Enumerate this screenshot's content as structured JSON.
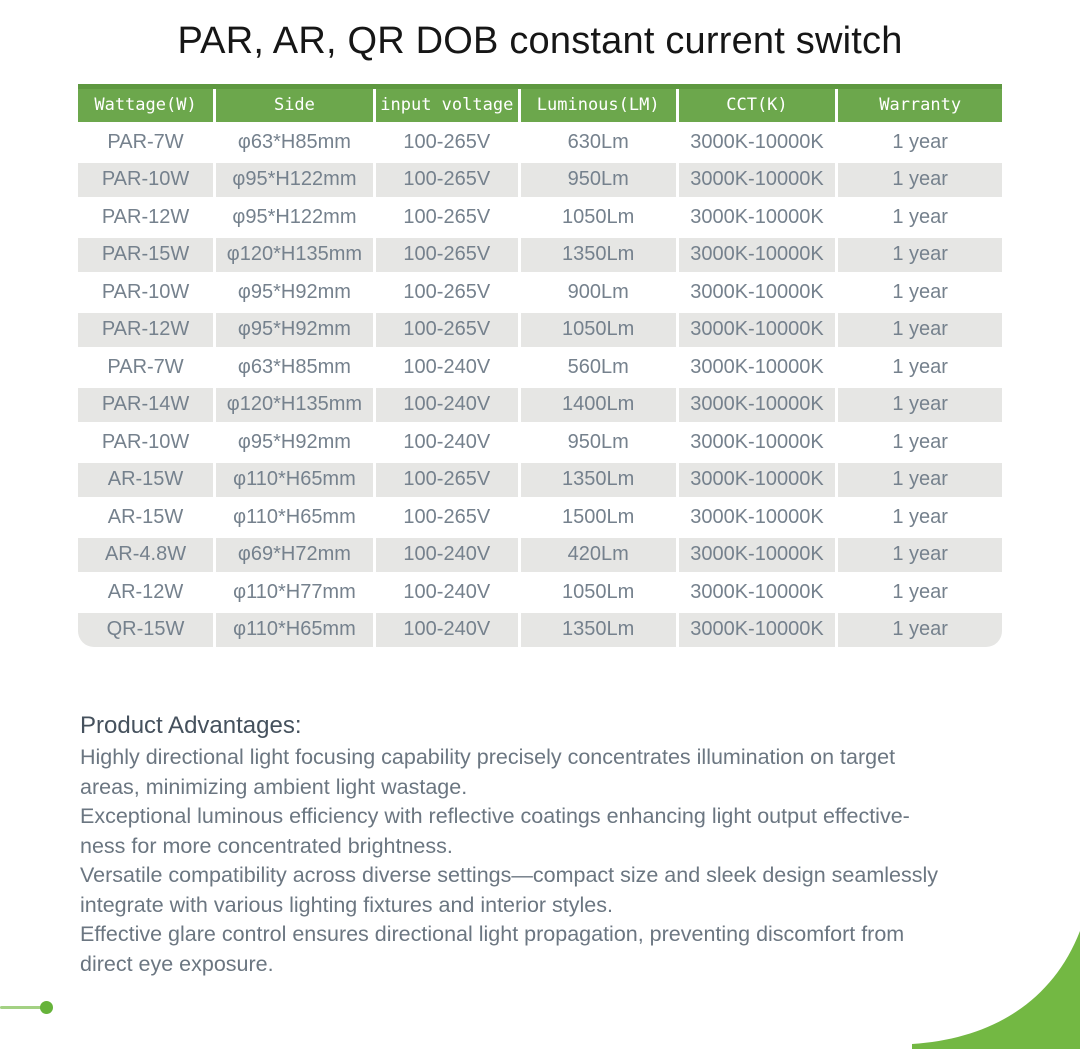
{
  "page": {
    "title": "PAR, AR, QR DOB constant current switch"
  },
  "table": {
    "headers": [
      "Wattage(W)",
      "Side",
      "input voltage",
      "Luminous(LM)",
      "CCT(K)",
      "Warranty"
    ],
    "rows": [
      [
        "PAR-7W",
        "φ63*H85mm",
        "100-265V",
        "630Lm",
        "3000K-10000K",
        "1 year"
      ],
      [
        "PAR-10W",
        "φ95*H122mm",
        "100-265V",
        "950Lm",
        "3000K-10000K",
        "1 year"
      ],
      [
        "PAR-12W",
        "φ95*H122mm",
        "100-265V",
        "1050Lm",
        "3000K-10000K",
        "1 year"
      ],
      [
        "PAR-15W",
        "φ120*H135mm",
        "100-265V",
        "1350Lm",
        "3000K-10000K",
        "1 year"
      ],
      [
        "PAR-10W",
        "φ95*H92mm",
        "100-265V",
        "900Lm",
        "3000K-10000K",
        "1 year"
      ],
      [
        "PAR-12W",
        "φ95*H92mm",
        "100-265V",
        "1050Lm",
        "3000K-10000K",
        "1 year"
      ],
      [
        "PAR-7W",
        "φ63*H85mm",
        "100-240V",
        "560Lm",
        "3000K-10000K",
        "1 year"
      ],
      [
        "PAR-14W",
        "φ120*H135mm",
        "100-240V",
        "1400Lm",
        "3000K-10000K",
        "1 year"
      ],
      [
        "PAR-10W",
        "φ95*H92mm",
        "100-240V",
        "950Lm",
        "3000K-10000K",
        "1 year"
      ],
      [
        "AR-15W",
        "φ110*H65mm",
        "100-265V",
        "1350Lm",
        "3000K-10000K",
        "1 year"
      ],
      [
        "AR-15W",
        "φ110*H65mm",
        "100-265V",
        "1500Lm",
        "3000K-10000K",
        "1 year"
      ],
      [
        "AR-4.8W",
        "φ69*H72mm",
        "100-240V",
        "420Lm",
        "3000K-10000K",
        "1 year"
      ],
      [
        "AR-12W",
        "φ110*H77mm",
        "100-240V",
        "1050Lm",
        "3000K-10000K",
        "1 year"
      ],
      [
        "QR-15W",
        "φ110*H65mm",
        "100-240V",
        "1350Lm",
        "3000K-10000K",
        "1 year"
      ]
    ]
  },
  "advantages": {
    "heading": "Product Advantages:",
    "paragraphs": [
      "Highly directional light focusing capability precisely concentrates illumination on target\nareas, minimizing ambient light wastage.",
      "Exceptional luminous efficiency with reflective coatings enhancing light output effective-\nness for more concentrated brightness.",
      "Versatile compatibility across diverse settings—compact size and sleek design seamlessly\nintegrate with various lighting fixtures and interior styles.",
      "Effective glare control ensures directional light propagation, preventing discomfort from\ndirect eye exposure."
    ]
  },
  "colors": {
    "header_green": "#6ca74c",
    "header_top_band": "#5e9840",
    "row_alt_gray": "#e6e6e4",
    "cell_text": "#75818d",
    "swoosh_green": "#73b843",
    "accent_line_green": "#a3d183",
    "accent_dot_green": "#66b33a",
    "title_text": "#161616",
    "body_text": "#6b7681"
  }
}
